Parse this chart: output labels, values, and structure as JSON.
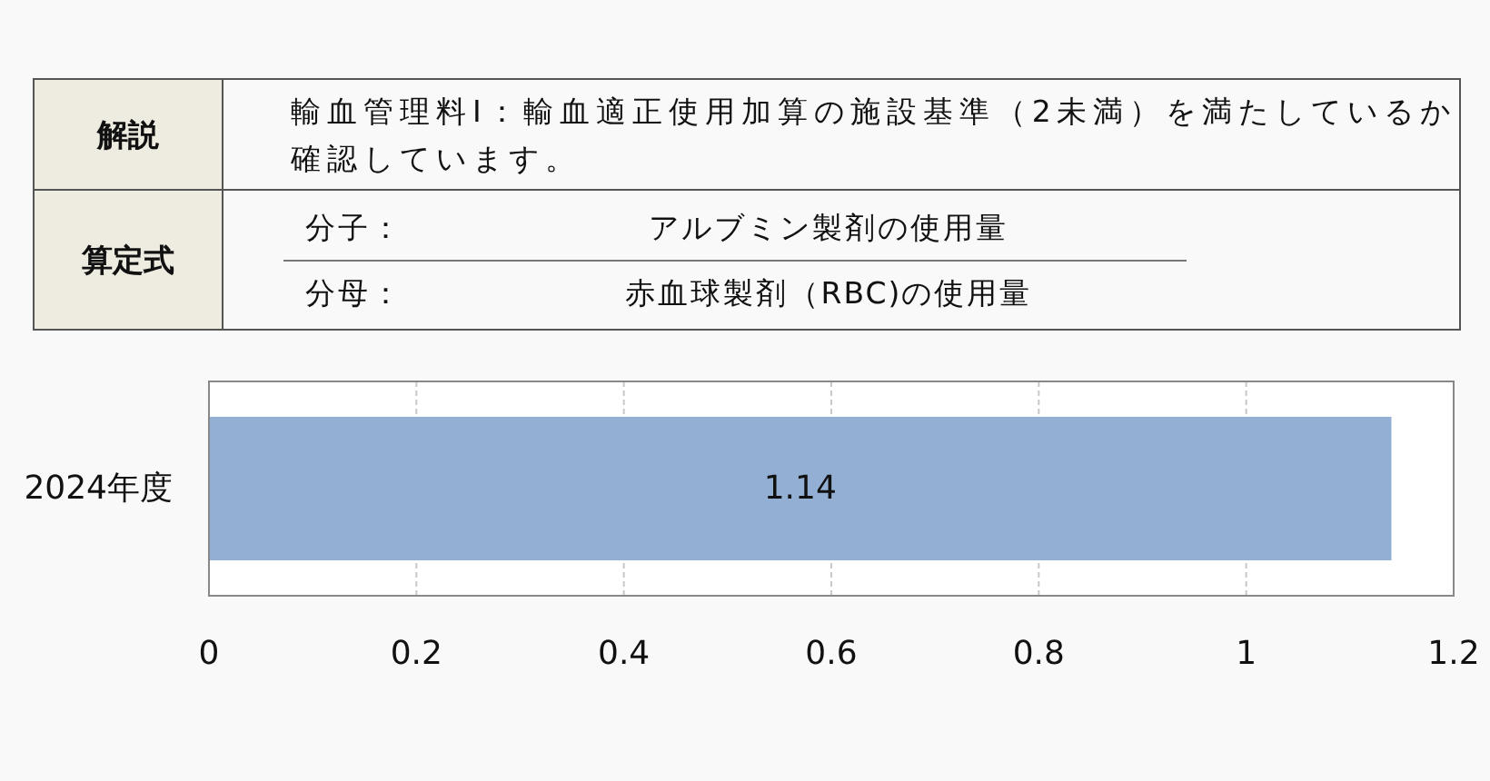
{
  "chart_data": [
    {
      "type": "other",
      "annotations": [
        "解説",
        "輸血管理料Ⅰ：輸血適正使用加算の施設基準（2未満）を満たしているか確認しています。",
        "算定式",
        "分子：",
        "アルブミン製剤の使用量",
        "分母：",
        "赤血球製剤（RBC)の使用量"
      ]
    },
    {
      "type": "bar",
      "orientation": "horizontal",
      "categories": [
        "2024年度"
      ],
      "values": [
        1.14
      ],
      "color": "#93b0d4",
      "xlim": [
        0,
        1.2
      ],
      "xticks": [
        0,
        0.2,
        0.4,
        0.6,
        0.8,
        1,
        1.2
      ],
      "grid": "x",
      "data_labels": true
    }
  ]
}
